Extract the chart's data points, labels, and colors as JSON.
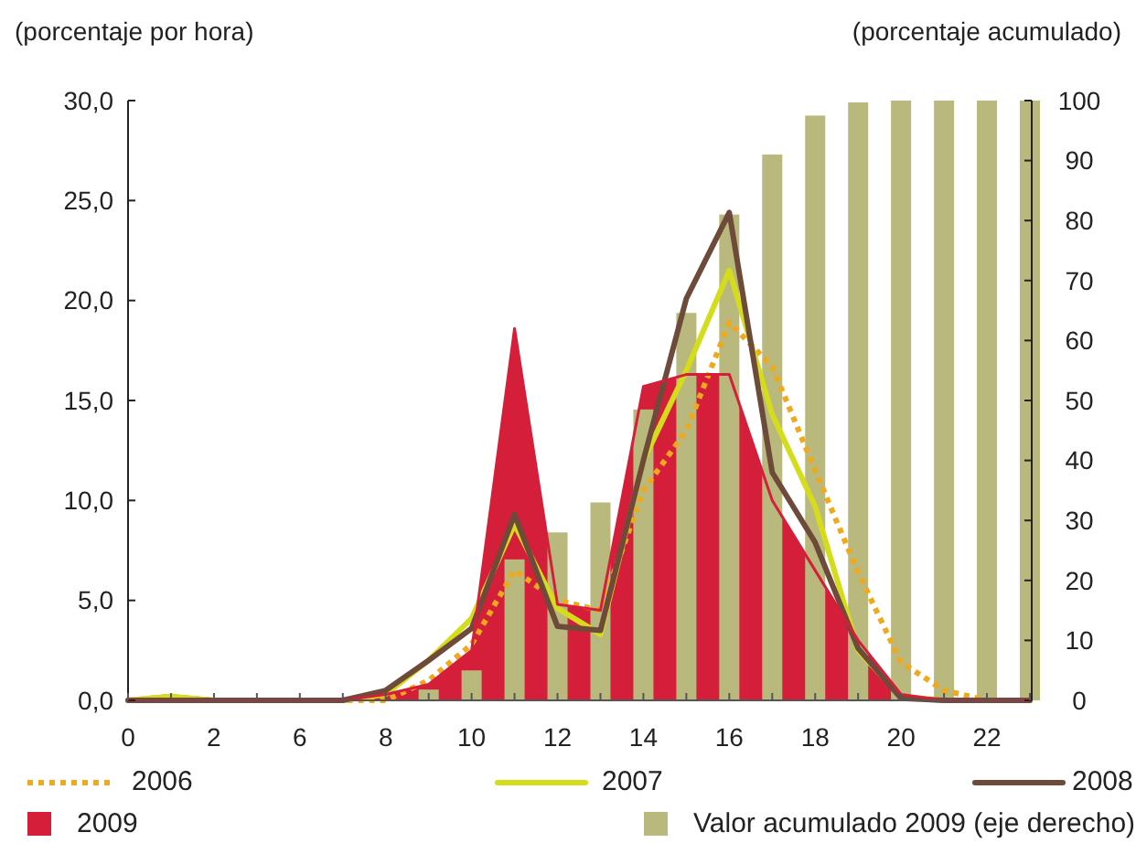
{
  "chart_data": {
    "type": "line",
    "ylabel": "(porcentaje por hora)",
    "y2label": "(porcentaje acumulado)",
    "categories": [
      "0",
      null,
      "2",
      null,
      "6",
      null,
      "8",
      null,
      "10",
      null,
      "12",
      null,
      "14",
      null,
      "16",
      null,
      "18",
      null,
      "20",
      null,
      "22",
      null
    ],
    "series": [
      {
        "name": "2006",
        "line_style": "dotted",
        "color": "#f0a81c",
        "values": [
          0,
          0.2,
          0,
          0,
          0,
          0,
          0,
          1,
          2.8,
          6.5,
          5,
          4.5,
          10.5,
          13.5,
          18.9,
          16.7,
          11.5,
          6.4,
          1.9,
          0.5,
          0,
          0
        ]
      },
      {
        "name": "2007",
        "line_style": "solid",
        "color": "#d4dc1c",
        "values": [
          0,
          0.2,
          0,
          0,
          0,
          0,
          0.3,
          2,
          4.1,
          8.8,
          4.6,
          3.3,
          12,
          16.5,
          21.5,
          14.3,
          9.7,
          2.5,
          0.2,
          0,
          0,
          0
        ]
      },
      {
        "name": "2008",
        "line_style": "solid",
        "color": "#6e4a3a",
        "values": [
          0,
          0,
          0,
          0,
          0,
          0,
          0.5,
          2,
          3.6,
          9.3,
          3.7,
          3.5,
          12,
          20.1,
          24.4,
          11.4,
          7.9,
          2.6,
          0.1,
          0,
          0,
          0
        ]
      },
      {
        "name": "2009",
        "type": "area",
        "color": "#d51f3a",
        "values": [
          0,
          0,
          0,
          0,
          0,
          0,
          0.3,
          0.8,
          2.5,
          18.6,
          4.8,
          4.5,
          15.7,
          16.3,
          16.3,
          10,
          6.5,
          3,
          0.3,
          0,
          0,
          0
        ]
      },
      {
        "name": "Valor acumulado 2009 (eje derecho)",
        "type": "bar",
        "axis": "y2",
        "color": "#b9b97e",
        "values": [
          0,
          0,
          0,
          0,
          0,
          0,
          null,
          1.8,
          5,
          23.5,
          28,
          33,
          48.5,
          64.6,
          81,
          91,
          97.5,
          99.7,
          100,
          100,
          100,
          100
        ]
      }
    ],
    "ylim": [
      0,
      30
    ],
    "yticks": [
      {
        "value": 0,
        "label": "0,0"
      },
      {
        "value": 5,
        "label": "5,0"
      },
      {
        "value": 10,
        "label": "10,0"
      },
      {
        "value": 15,
        "label": "15,0"
      },
      {
        "value": 20,
        "label": "20,0"
      },
      {
        "value": 25,
        "label": "25,0"
      },
      {
        "value": 30,
        "label": "30,0"
      }
    ],
    "y2lim": [
      0,
      100
    ],
    "y2ticks": [
      0,
      10,
      20,
      30,
      40,
      50,
      60,
      70,
      80,
      90,
      100
    ],
    "grid": false,
    "legend": "bottom"
  }
}
